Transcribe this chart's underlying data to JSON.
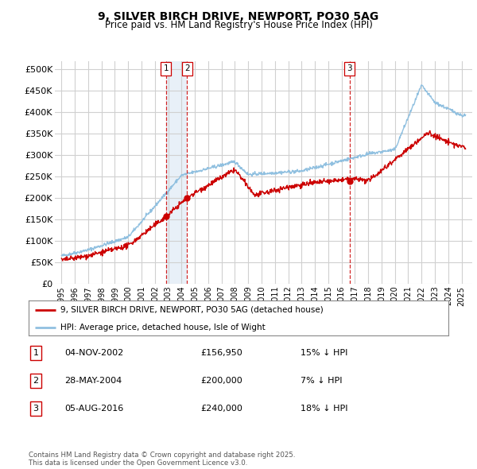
{
  "title": "9, SILVER BIRCH DRIVE, NEWPORT, PO30 5AG",
  "subtitle": "Price paid vs. HM Land Registry's House Price Index (HPI)",
  "background_color": "#ffffff",
  "grid_color": "#d0d0d0",
  "hpi_color": "#90c0e0",
  "price_color": "#cc0000",
  "shade_color": "#e8f0f8",
  "ylim": [
    0,
    520000
  ],
  "yticks": [
    0,
    50000,
    100000,
    150000,
    200000,
    250000,
    300000,
    350000,
    400000,
    450000,
    500000
  ],
  "ytick_labels": [
    "£0",
    "£50K",
    "£100K",
    "£150K",
    "£200K",
    "£250K",
    "£300K",
    "£350K",
    "£400K",
    "£450K",
    "£500K"
  ],
  "sale_year_floats": [
    2002.84,
    2004.41,
    2016.59
  ],
  "sale_prices": [
    156950,
    200000,
    240000
  ],
  "sale_labels": [
    "1",
    "2",
    "3"
  ],
  "sale_date_strs": [
    "04-NOV-2002",
    "28-MAY-2004",
    "05-AUG-2016"
  ],
  "sale_pct": [
    "15%",
    "7%",
    "18%"
  ],
  "legend_price_label": "9, SILVER BIRCH DRIVE, NEWPORT, PO30 5AG (detached house)",
  "legend_hpi_label": "HPI: Average price, detached house, Isle of Wight",
  "footnote": "Contains HM Land Registry data © Crown copyright and database right 2025.\nThis data is licensed under the Open Government Licence v3.0."
}
